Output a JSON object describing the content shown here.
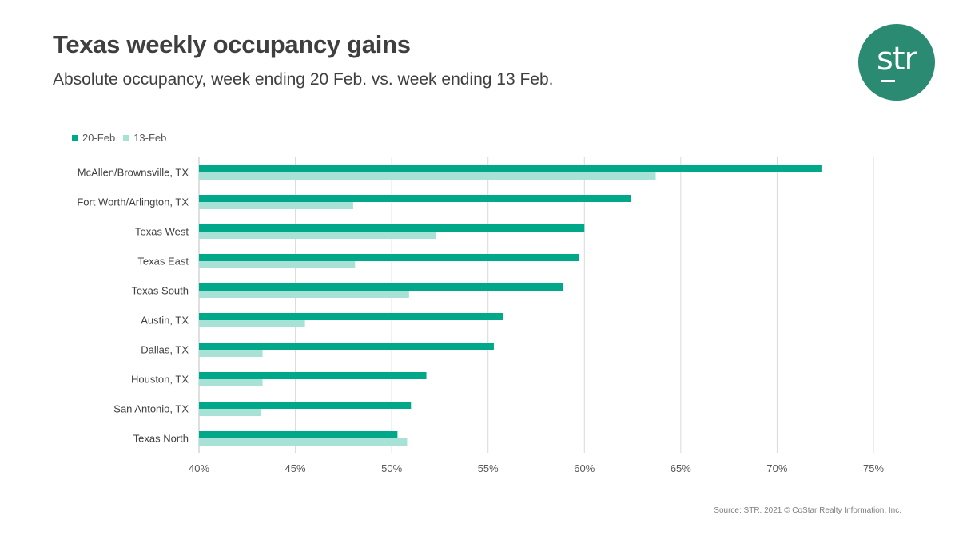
{
  "title": "Texas weekly occupancy gains",
  "subtitle": "Absolute occupancy, week ending 20 Feb. vs. week ending 13 Feb.",
  "logo": {
    "text": "str"
  },
  "source": "Source: STR. 2021 © CoStar Realty Information, Inc.",
  "colors": {
    "series_20feb": "#00a88a",
    "series_13feb": "#a8e2d6",
    "logo_bg": "#2a8a72",
    "gridline": "#d9d9d9"
  },
  "chart_data": {
    "type": "bar",
    "orientation": "horizontal",
    "title": "Texas weekly occupancy gains",
    "subtitle": "Absolute occupancy, week ending 20 Feb. vs. week ending 13 Feb.",
    "categories": [
      "McAllen/Brownsville, TX",
      "Fort Worth/Arlington, TX",
      "Texas West",
      "Texas East",
      "Texas South",
      "Austin, TX",
      "Dallas, TX",
      "Houston, TX",
      "San Antonio, TX",
      "Texas North"
    ],
    "series": [
      {
        "name": "20-Feb",
        "values": [
          72.3,
          62.4,
          60.0,
          59.7,
          58.9,
          55.8,
          55.3,
          51.8,
          51.0,
          50.3
        ]
      },
      {
        "name": "13-Feb",
        "values": [
          63.7,
          48.0,
          52.3,
          48.1,
          50.9,
          45.5,
          43.3,
          43.3,
          43.2,
          50.8
        ]
      }
    ],
    "xlim": [
      40,
      75
    ],
    "xticks": [
      40,
      45,
      50,
      55,
      60,
      65,
      70,
      75
    ],
    "xtick_labels": [
      "40%",
      "45%",
      "50%",
      "55%",
      "60%",
      "65%",
      "70%",
      "75%"
    ],
    "xlabel": "",
    "ylabel": "",
    "grid": true,
    "legend_position": "top-left"
  }
}
